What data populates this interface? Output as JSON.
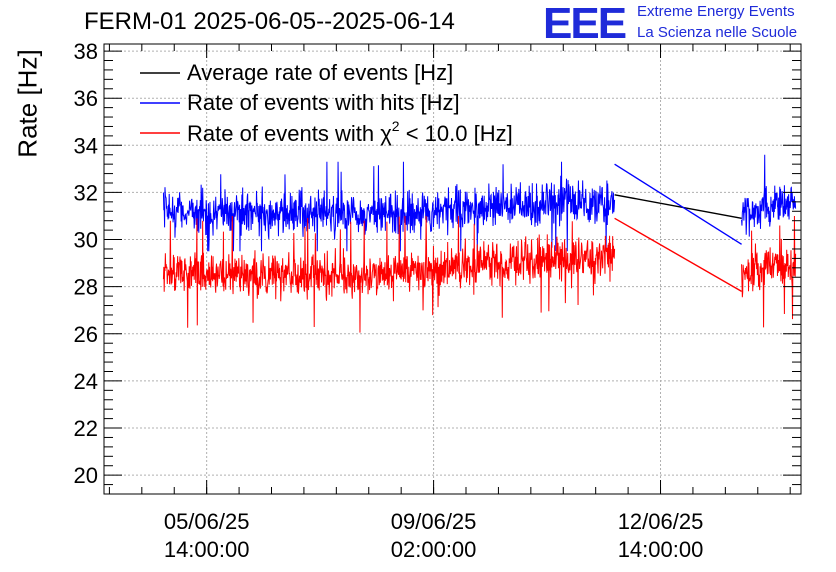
{
  "header": {
    "title": "FERM-01 2025-06-05--2025-06-14",
    "logo_text": "EEE",
    "logo_line1": "Extreme Energy Events",
    "logo_line2": "La Scienza nelle Scuole"
  },
  "colors": {
    "average": "#000000",
    "hits": "#0000ff",
    "chi2": "#ff0000",
    "logo": "#1f2bd9",
    "grid": "#b0b0b0"
  },
  "chart_data": {
    "type": "line",
    "title": "FERM-01 2025-06-05--2025-06-14",
    "ylabel": "Rate [Hz]",
    "xlabel": "",
    "ylim": [
      19.2,
      38.3
    ],
    "xlim": [
      "2025-06-04 00:00:00",
      "2025-06-14 18:00:00"
    ],
    "yticks": [
      20,
      22,
      24,
      26,
      28,
      30,
      32,
      34,
      36,
      38
    ],
    "xticks": [
      {
        "at": "2025-06-05 14:00:00",
        "label": [
          "05/06/25",
          "14:00:00"
        ]
      },
      {
        "at": "2025-06-09 02:00:00",
        "label": [
          "09/06/25",
          "02:00:00"
        ]
      },
      {
        "at": "2025-06-12 14:00:00",
        "label": [
          "12/06/25",
          "14:00:00"
        ]
      }
    ],
    "grid": true,
    "legend_position": "top-left",
    "series": [
      {
        "name": "Average rate of events [Hz]",
        "legend": "Average rate of events [Hz]",
        "color": "#000000",
        "points": [
          [
            "2025-06-11 21:00:00",
            31.9
          ],
          [
            "2025-06-13 20:00:00",
            30.9
          ]
        ]
      },
      {
        "name": "Rate of events with hits [Hz]",
        "legend": "Rate of events with hits [Hz]",
        "color": "#0000ff",
        "segments": [
          {
            "start": "2025-06-04 22:00:00",
            "end": "2025-06-11 21:00:00",
            "trend": [
              [
                "2025-06-04 22:00:00",
                31.2
              ],
              [
                "2025-06-08 00:00:00",
                31.0
              ],
              [
                "2025-06-11 21:00:00",
                31.7
              ]
            ],
            "spread": [
              29.5,
              33.3
            ]
          },
          {
            "start": "2025-06-13 20:00:00",
            "end": "2025-06-14 16:00:00",
            "trend": [
              [
                "2025-06-13 20:00:00",
                31.2
              ],
              [
                "2025-06-14 16:00:00",
                31.6
              ]
            ],
            "spread": [
              29.3,
              34.3
            ]
          }
        ],
        "gap_line": [
          [
            "2025-06-11 21:00:00",
            33.2
          ],
          [
            "2025-06-13 20:00:00",
            29.8
          ]
        ]
      },
      {
        "name": "Rate of events with χ² < 10.0 [Hz]",
        "legend_prefix": "Rate of events with ",
        "legend_chi": "χ",
        "legend_sup": "2",
        "legend_suffix": " < 10.0 [Hz]",
        "color": "#ff0000",
        "segments": [
          {
            "start": "2025-06-04 22:00:00",
            "end": "2025-06-11 21:00:00",
            "trend": [
              [
                "2025-06-04 22:00:00",
                28.6
              ],
              [
                "2025-06-08 00:00:00",
                28.5
              ],
              [
                "2025-06-11 21:00:00",
                29.3
              ]
            ],
            "spread": [
              25.5,
              31.0
            ]
          },
          {
            "start": "2025-06-13 20:00:00",
            "end": "2025-06-14 16:00:00",
            "trend": [
              [
                "2025-06-13 20:00:00",
                28.6
              ],
              [
                "2025-06-14 16:00:00",
                29.0
              ]
            ],
            "spread": [
              25.8,
              31.0
            ]
          }
        ],
        "gap_line": [
          [
            "2025-06-11 21:00:00",
            30.9
          ],
          [
            "2025-06-13 20:00:00",
            27.8
          ]
        ]
      }
    ]
  }
}
